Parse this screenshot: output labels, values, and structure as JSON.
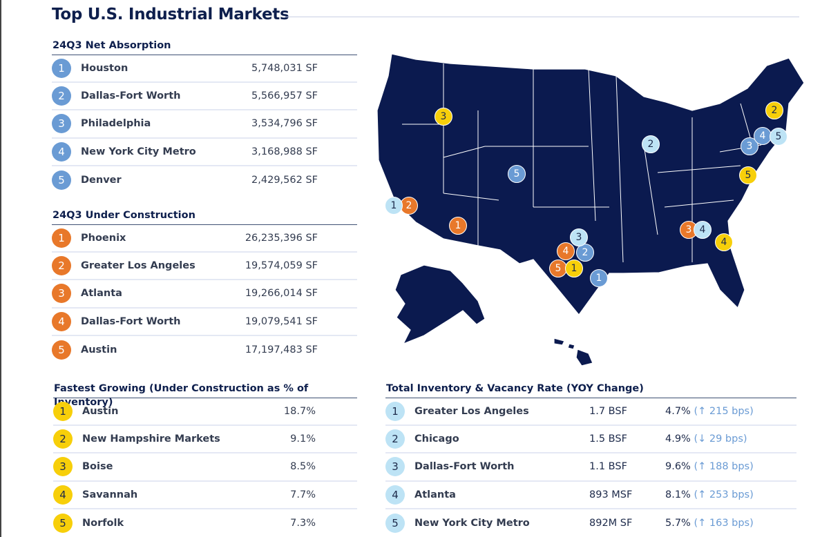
{
  "title": "Top U.S. Industrial Markets",
  "colors": {
    "net_absorption": "#6a9bd4",
    "under_construction": "#e8782a",
    "fastest_growing": "#f7cf0a",
    "inventory": "#bde3f5",
    "map": "#0b1a4f"
  },
  "net_absorption": {
    "heading": "24Q3 Net Absorption",
    "rows": [
      {
        "rank": "1",
        "name": "Houston",
        "value": "5,748,031 SF"
      },
      {
        "rank": "2",
        "name": "Dallas-Fort Worth",
        "value": "5,566,957 SF"
      },
      {
        "rank": "3",
        "name": "Philadelphia",
        "value": "3,534,796 SF"
      },
      {
        "rank": "4",
        "name": "New York City Metro",
        "value": "3,168,988 SF"
      },
      {
        "rank": "5",
        "name": "Denver",
        "value": "2,429,562 SF"
      }
    ]
  },
  "under_construction": {
    "heading": "24Q3 Under Construction",
    "rows": [
      {
        "rank": "1",
        "name": "Phoenix",
        "value": "26,235,396 SF"
      },
      {
        "rank": "2",
        "name": "Greater Los Angeles",
        "value": "19,574,059 SF"
      },
      {
        "rank": "3",
        "name": "Atlanta",
        "value": "19,266,014 SF"
      },
      {
        "rank": "4",
        "name": "Dallas-Fort Worth",
        "value": "19,079,541 SF"
      },
      {
        "rank": "5",
        "name": "Austin",
        "value": "17,197,483 SF"
      }
    ]
  },
  "fastest_growing": {
    "heading": "Fastest Growing (Under Construction as % of Inventory)",
    "rows": [
      {
        "rank": "1",
        "name": "Austin",
        "value": "18.7%"
      },
      {
        "rank": "2",
        "name": "New Hampshire Markets",
        "value": "9.1%"
      },
      {
        "rank": "3",
        "name": "Boise",
        "value": "8.5%"
      },
      {
        "rank": "4",
        "name": "Savannah",
        "value": "7.7%"
      },
      {
        "rank": "5",
        "name": "Norfolk",
        "value": "7.3%"
      }
    ]
  },
  "inventory": {
    "heading": "Total Inventory & Vacancy Rate (YOY Change)",
    "rows": [
      {
        "rank": "1",
        "name": "Greater Los Angeles",
        "inventory": "1.7 BSF",
        "vacancy": "4.7%",
        "change": "(↑ 215 bps)"
      },
      {
        "rank": "2",
        "name": "Chicago",
        "inventory": "1.5 BSF",
        "vacancy": "4.9%",
        "change": "(↓ 29 bps)"
      },
      {
        "rank": "3",
        "name": "Dallas-Fort Worth",
        "inventory": "1.1 BSF",
        "vacancy": "9.6%",
        "change": "(↑ 188 bps)"
      },
      {
        "rank": "4",
        "name": "Atlanta",
        "inventory": "893 MSF",
        "vacancy": "8.1%",
        "change": "(↑ 253 bps)"
      },
      {
        "rank": "5",
        "name": "New York City Metro",
        "inventory": "892M SF",
        "vacancy": "5.7%",
        "change": "(↑ 163 bps)"
      }
    ]
  },
  "map_markers": [
    {
      "label": "1",
      "category": "net_absorption",
      "market": "Houston"
    },
    {
      "label": "2",
      "category": "net_absorption",
      "market": "Dallas-Fort Worth"
    },
    {
      "label": "3",
      "category": "net_absorption",
      "market": "Philadelphia"
    },
    {
      "label": "4",
      "category": "net_absorption",
      "market": "New York City Metro"
    },
    {
      "label": "5",
      "category": "net_absorption",
      "market": "Denver"
    },
    {
      "label": "1",
      "category": "under_construction",
      "market": "Phoenix"
    },
    {
      "label": "2",
      "category": "under_construction",
      "market": "Greater Los Angeles"
    },
    {
      "label": "3",
      "category": "under_construction",
      "market": "Atlanta"
    },
    {
      "label": "4",
      "category": "under_construction",
      "market": "Dallas-Fort Worth"
    },
    {
      "label": "5",
      "category": "under_construction",
      "market": "Austin"
    },
    {
      "label": "1",
      "category": "fastest_growing",
      "market": "Austin"
    },
    {
      "label": "2",
      "category": "fastest_growing",
      "market": "New Hampshire Markets"
    },
    {
      "label": "3",
      "category": "fastest_growing",
      "market": "Boise"
    },
    {
      "label": "4",
      "category": "fastest_growing",
      "market": "Savannah"
    },
    {
      "label": "5",
      "category": "fastest_growing",
      "market": "Norfolk"
    },
    {
      "label": "1",
      "category": "inventory",
      "market": "Greater Los Angeles"
    },
    {
      "label": "2",
      "category": "inventory",
      "market": "Chicago"
    },
    {
      "label": "3",
      "category": "inventory",
      "market": "Dallas-Fort Worth"
    },
    {
      "label": "4",
      "category": "inventory",
      "market": "Atlanta"
    },
    {
      "label": "5",
      "category": "inventory",
      "market": "New York City Metro"
    }
  ]
}
